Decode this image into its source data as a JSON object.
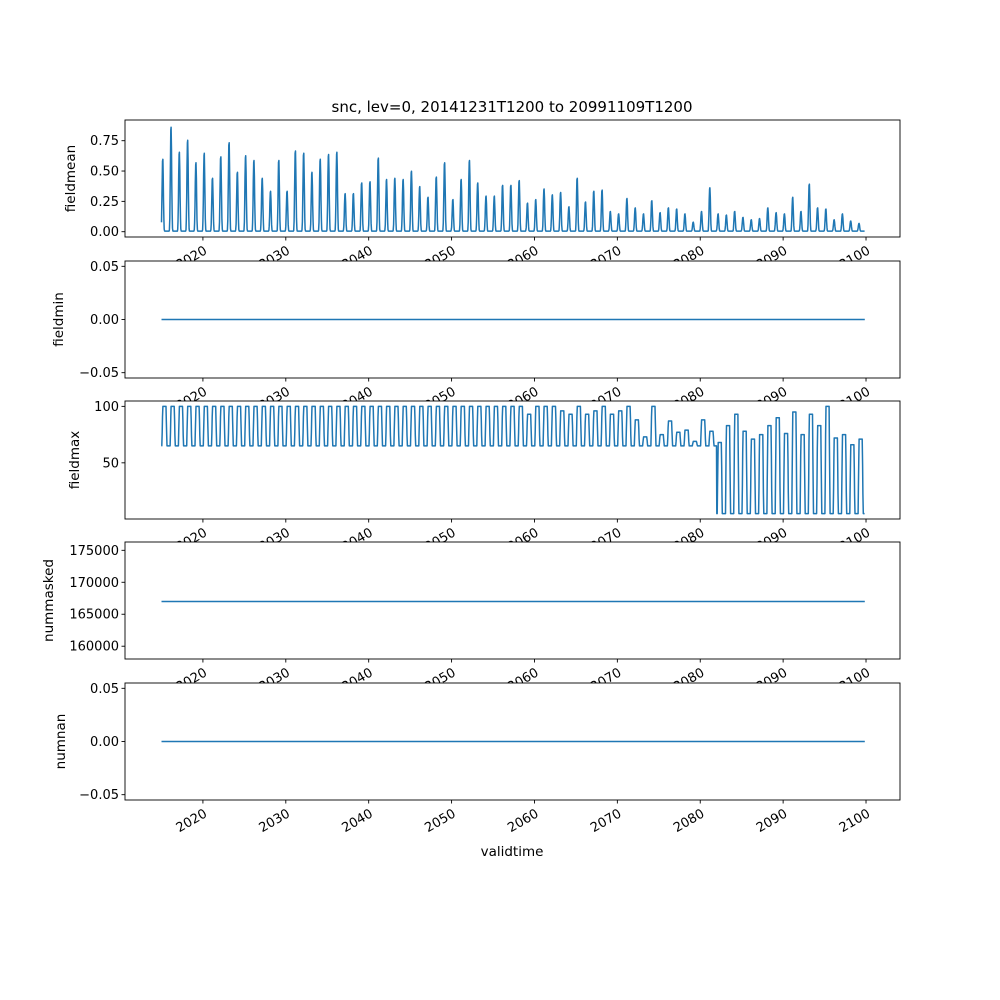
{
  "chart_data": {
    "type": "line",
    "title": "snc, lev=0, 20141231T1200 to 20991109T1200",
    "xlabel": "validtime",
    "x_range": [
      2010.6,
      2104.1
    ],
    "x_data_range": [
      2015.0,
      2099.85
    ],
    "x_ticks": [
      2020,
      2030,
      2040,
      2050,
      2060,
      2070,
      2080,
      2090,
      2100
    ],
    "x_tick_labels": [
      "2020",
      "2030",
      "2040",
      "2050",
      "2060",
      "2070",
      "2080",
      "2090",
      "2100"
    ],
    "series_color": "#1f77b4",
    "years_start": 2015,
    "subplots": [
      {
        "name": "fieldmean",
        "ylabel": "fieldmean",
        "ylim": [
          -0.0437,
          0.9206
        ],
        "y_ticks": [
          0,
          0.25,
          0.5,
          0.75
        ],
        "y_tick_labels": [
          "0.00",
          "0.25",
          "0.50",
          "0.75"
        ],
        "kind": "seasonal-peaks",
        "annual_peaks": [
          0.61,
          0.88,
          0.67,
          0.77,
          0.58,
          0.66,
          0.45,
          0.63,
          0.75,
          0.5,
          0.64,
          0.6,
          0.45,
          0.34,
          0.6,
          0.34,
          0.68,
          0.66,
          0.5,
          0.61,
          0.65,
          0.67,
          0.32,
          0.32,
          0.41,
          0.42,
          0.62,
          0.44,
          0.45,
          0.44,
          0.51,
          0.38,
          0.29,
          0.46,
          0.58,
          0.27,
          0.44,
          0.6,
          0.41,
          0.3,
          0.3,
          0.39,
          0.39,
          0.43,
          0.24,
          0.27,
          0.36,
          0.31,
          0.33,
          0.21,
          0.45,
          0.25,
          0.34,
          0.35,
          0.17,
          0.15,
          0.28,
          0.2,
          0.15,
          0.26,
          0.16,
          0.2,
          0.19,
          0.15,
          0.08,
          0.17,
          0.37,
          0.15,
          0.14,
          0.17,
          0.12,
          0.1,
          0.11,
          0.2,
          0.16,
          0.15,
          0.29,
          0.17,
          0.4,
          0.2,
          0.19,
          0.1,
          0.15,
          0.09,
          0.07
        ],
        "annual_min": 0.005
      },
      {
        "name": "fieldmin",
        "ylabel": "fieldmin",
        "ylim": [
          -0.055,
          0.055
        ],
        "y_ticks": [
          -0.05,
          0,
          0.05
        ],
        "y_tick_labels": [
          "−0.05",
          "0.00",
          "0.05"
        ],
        "kind": "constant",
        "value": 0
      },
      {
        "name": "fieldmax",
        "ylabel": "fieldmax",
        "ylim": [
          0.25,
          104.75
        ],
        "y_ticks": [
          50,
          100
        ],
        "y_tick_labels": [
          "50",
          "100"
        ],
        "kind": "seasonal-plateau",
        "annual_peaks": [
          100,
          100,
          100,
          100,
          100,
          100,
          100,
          100,
          100,
          100,
          100,
          100,
          100,
          100,
          100,
          100,
          100,
          100,
          100,
          100,
          100,
          100,
          100,
          100,
          100,
          100,
          100,
          100,
          100,
          100,
          100,
          100,
          100,
          100,
          100,
          100,
          100,
          100,
          100,
          100,
          100,
          100,
          100,
          100,
          93,
          100,
          100,
          100,
          96,
          93,
          100,
          93,
          96,
          100,
          93,
          96,
          100,
          88,
          73,
          100,
          75,
          87,
          77,
          79,
          69,
          88,
          78,
          68,
          83,
          93,
          78,
          71,
          75,
          83,
          90,
          76,
          95,
          75,
          93,
          83,
          100,
          72,
          75,
          66,
          71
        ],
        "annual_troughs": [
          65,
          65,
          65,
          65,
          65,
          65,
          65,
          65,
          65,
          65,
          65,
          65,
          65,
          65,
          65,
          65,
          65,
          65,
          65,
          65,
          65,
          65,
          65,
          65,
          65,
          65,
          65,
          65,
          65,
          65,
          65,
          65,
          65,
          65,
          65,
          65,
          65,
          65,
          65,
          65,
          65,
          65,
          65,
          65,
          65,
          65,
          65,
          65,
          65,
          65,
          65,
          65,
          65,
          65,
          65,
          65,
          65,
          65,
          65,
          65,
          65,
          65,
          65,
          65,
          65,
          65,
          65,
          5,
          5,
          5,
          5,
          5,
          5,
          5,
          5,
          5,
          5,
          5,
          5,
          5,
          5,
          5,
          5,
          5,
          5
        ]
      },
      {
        "name": "nummasked",
        "ylabel": "nummasked",
        "ylim": [
          158000,
          176300
        ],
        "y_ticks": [
          160000,
          165000,
          170000,
          175000
        ],
        "y_tick_labels": [
          "160000",
          "165000",
          "170000",
          "175000"
        ],
        "kind": "constant",
        "value": 167000
      },
      {
        "name": "numnan",
        "ylabel": "numnan",
        "ylim": [
          -0.055,
          0.055
        ],
        "y_ticks": [
          -0.05,
          0,
          0.05
        ],
        "y_tick_labels": [
          "−0.05",
          "0.00",
          "0.05"
        ],
        "kind": "constant",
        "value": 0
      }
    ]
  }
}
